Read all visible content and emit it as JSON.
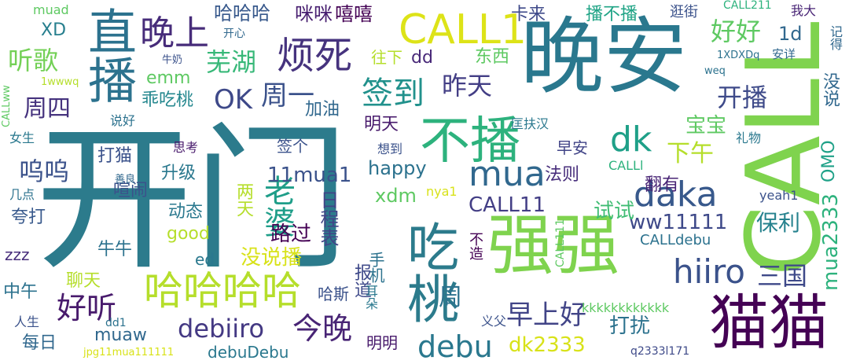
{
  "words": [
    {
      "text": "开门",
      "color": "#2c7b8c"
    },
    {
      "text": "晚安",
      "color": "#2a788e"
    },
    {
      "text": "CALL",
      "color": "#7fd34e"
    },
    {
      "text": "强强",
      "color": "#7fd34e"
    },
    {
      "text": "猫猫",
      "color": "#440154"
    },
    {
      "text": "直播",
      "color": "#2c728e"
    },
    {
      "text": "不播",
      "color": "#2db27d"
    },
    {
      "text": "吃桃",
      "color": "#2c7b8c"
    },
    {
      "text": "CALL1",
      "color": "#dde318"
    },
    {
      "text": "哈哈哈哈",
      "color": "#b5de2b"
    },
    {
      "text": "烦死",
      "color": "#46337e"
    },
    {
      "text": "晚上",
      "color": "#472c7a"
    },
    {
      "text": "mua",
      "color": "#31688e"
    },
    {
      "text": "daka",
      "color": "#38598c"
    },
    {
      "text": "hiiro",
      "color": "#3b528b"
    },
    {
      "text": "dk",
      "color": "#1fa088"
    },
    {
      "text": "老婆",
      "color": "#1f9e89"
    },
    {
      "text": "签到",
      "color": "#21918c"
    },
    {
      "text": "debu",
      "color": "#2a788e"
    },
    {
      "text": "今晚",
      "color": "#482475"
    },
    {
      "text": "好听",
      "color": "#481a6c"
    },
    {
      "text": "debiiro",
      "color": "#443983"
    },
    {
      "text": "听歌",
      "color": "#73d056"
    },
    {
      "text": "芜湖",
      "color": "#37b878"
    },
    {
      "text": "OK",
      "color": "#3e4989"
    },
    {
      "text": "周一",
      "color": "#3b528b"
    },
    {
      "text": "好好",
      "color": "#5ec962"
    },
    {
      "text": "开播",
      "color": "#3e4a89"
    },
    {
      "text": "三国",
      "color": "#3e4989"
    },
    {
      "text": "早上好",
      "color": "#414487"
    },
    {
      "text": "昨天",
      "color": "#433e85"
    },
    {
      "text": "周四",
      "color": "#46337e"
    },
    {
      "text": "呜呜",
      "color": "#3b528b"
    },
    {
      "text": "下午",
      "color": "#b5de2b"
    },
    {
      "text": "dk2333",
      "color": "#d8e219"
    },
    {
      "text": "mua2333",
      "color": "#2db27d"
    },
    {
      "text": "打扰",
      "color": "#2c728e"
    },
    {
      "text": "CALL11",
      "color": "#433e85"
    },
    {
      "text": "11mua1",
      "color": "#3b528b"
    },
    {
      "text": "ww11111",
      "color": "#3e4989"
    },
    {
      "text": "保利",
      "color": "#26828e"
    },
    {
      "text": "路过",
      "color": "#440154"
    },
    {
      "text": "没说播",
      "color": "#d8e219"
    },
    {
      "text": "试试",
      "color": "#3fbc73"
    },
    {
      "text": "宝宝",
      "color": "#5ec962"
    },
    {
      "text": "happy",
      "color": "#2c728e"
    },
    {
      "text": "1d",
      "color": "#31688e"
    },
    {
      "text": "哈哈哈",
      "color": "#38598c"
    },
    {
      "text": "咪咪",
      "color": "#481f70"
    },
    {
      "text": "嘻嘻",
      "color": "#440154"
    },
    {
      "text": "卡来",
      "color": "#3e4989"
    },
    {
      "text": "播不播",
      "color": "#20a486"
    },
    {
      "text": "逛街",
      "color": "#3b528b"
    },
    {
      "text": "muad",
      "color": "#5ec962"
    },
    {
      "text": "XD",
      "color": "#277f8e"
    },
    {
      "text": "emm",
      "color": "#5ec962"
    },
    {
      "text": "乖吃桃",
      "color": "#24878e"
    },
    {
      "text": "加油",
      "color": "#31688e"
    },
    {
      "text": "明天",
      "color": "#481a6c"
    },
    {
      "text": "东西",
      "color": "#5ec962"
    },
    {
      "text": "往下",
      "color": "#b5de2b"
    },
    {
      "text": "dd",
      "color": "#482878"
    },
    {
      "text": "OMO",
      "color": "#1fa188"
    },
    {
      "text": "没说",
      "color": "#31688e"
    },
    {
      "text": "翻有",
      "color": "#482475"
    },
    {
      "text": "早安",
      "color": "#414487"
    },
    {
      "text": "法则",
      "color": "#472d7b"
    },
    {
      "text": "签个",
      "color": "#3b528b"
    },
    {
      "text": "打猫",
      "color": "#3b528b"
    },
    {
      "text": "升级",
      "color": "#2a788e"
    },
    {
      "text": "两天",
      "color": "#b5de2b"
    },
    {
      "text": "日程表",
      "color": "#414487"
    },
    {
      "text": "xdm",
      "color": "#5ec962"
    },
    {
      "text": "喧闹",
      "color": "#3b528b"
    },
    {
      "text": "动态",
      "color": "#2a788e"
    },
    {
      "text": "夸打",
      "color": "#38598c"
    },
    {
      "text": "good",
      "color": "#b5de2b"
    },
    {
      "text": "牛牛",
      "color": "#2c728e"
    },
    {
      "text": "zzz",
      "color": "#472d7b"
    },
    {
      "text": "ed",
      "color": "#2a788e"
    },
    {
      "text": "聊天",
      "color": "#b5de2b"
    },
    {
      "text": "中午",
      "color": "#2c728e"
    },
    {
      "text": "哈斯",
      "color": "#3b528b"
    },
    {
      "text": "报道",
      "color": "#3e4989"
    },
    {
      "text": "手机",
      "color": "#2c728e"
    },
    {
      "text": "每日",
      "color": "#31688e"
    },
    {
      "text": "muaw",
      "color": "#31688e"
    },
    {
      "text": "明明",
      "color": "#481a6c"
    },
    {
      "text": "kkkkkkkkkkkk",
      "color": "#5ec962"
    },
    {
      "text": "debuDebu",
      "color": "#2a788e"
    },
    {
      "text": "q2333l171",
      "color": "#3e4a89"
    },
    {
      "text": "jpg11mua111111",
      "color": "#d8e219"
    },
    {
      "text": "人生",
      "color": "#3b528b"
    },
    {
      "text": "dd1",
      "color": "#2c728e"
    },
    {
      "text": "义父",
      "color": "#3b528b"
    },
    {
      "text": "耳朵",
      "color": "#2a788e"
    },
    {
      "text": "不造",
      "color": "#440154"
    },
    {
      "text": "CALL111",
      "color": "#5ec962"
    },
    {
      "text": "CALLdebu",
      "color": "#2c728e"
    },
    {
      "text": "yeah1",
      "color": "#3b528b"
    },
    {
      "text": "CALLl",
      "color": "#2db27d"
    },
    {
      "text": "nya1",
      "color": "#d8e219"
    },
    {
      "text": "礼物",
      "color": "#2a788e"
    },
    {
      "text": "想到",
      "color": "#3b528b"
    },
    {
      "text": "匡扶汉",
      "color": "#2a788e"
    },
    {
      "text": "思考",
      "color": "#481a6c"
    },
    {
      "text": "善良",
      "color": "#31688e"
    },
    {
      "text": "几点",
      "color": "#2c728e"
    },
    {
      "text": "女生",
      "color": "#2a788e"
    },
    {
      "text": "说好",
      "color": "#2c728e"
    },
    {
      "text": "CALLww",
      "color": "#5ec962"
    },
    {
      "text": "1wwwq",
      "color": "#b5de2b"
    },
    {
      "text": "牛奶",
      "color": "#3b528b"
    },
    {
      "text": "开心",
      "color": "#31688e"
    },
    {
      "text": "1XDXDq",
      "color": "#2c728e"
    },
    {
      "text": "安详",
      "color": "#31688e"
    },
    {
      "text": "weq",
      "color": "#2c728e"
    },
    {
      "text": "CALL211",
      "color": "#2db27d"
    },
    {
      "text": "我大",
      "color": "#482475"
    },
    {
      "text": "记得",
      "color": "#31688e"
    },
    {
      "text": "周",
      "color": "#2c728e"
    }
  ]
}
